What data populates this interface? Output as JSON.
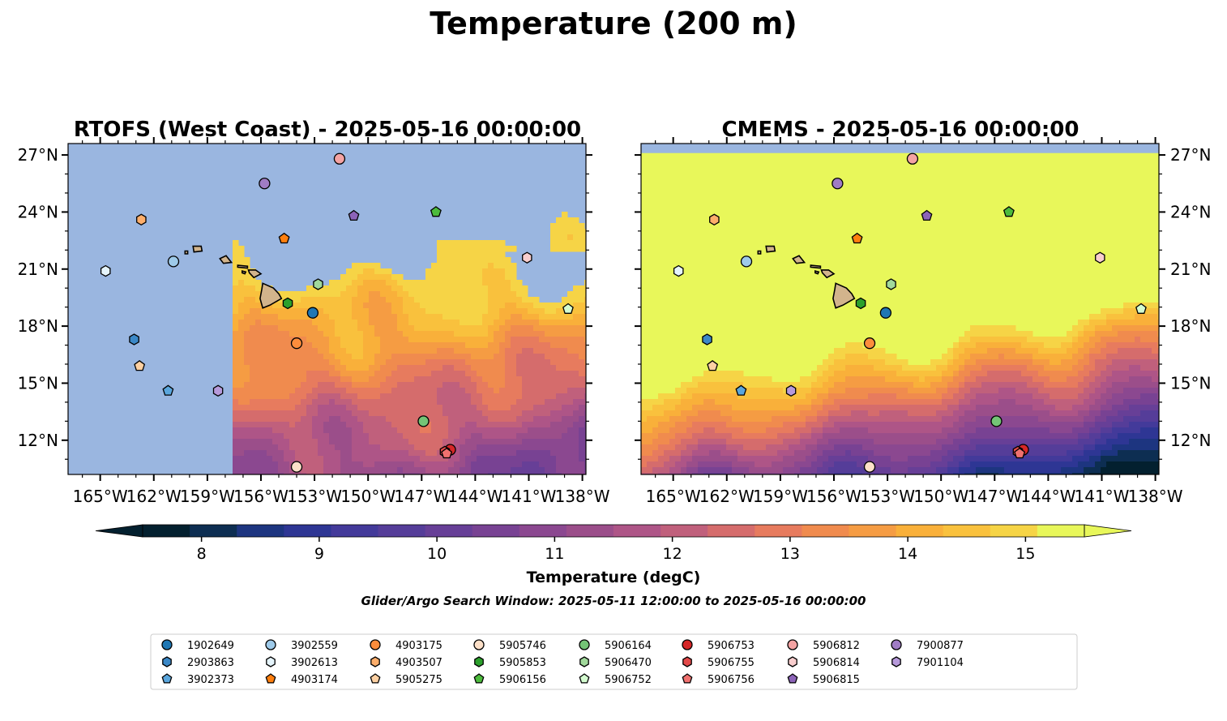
{
  "figure": {
    "title": "Temperature (200 m)",
    "colorbar_label": "Temperature (degC)",
    "search_window": "Glider/Argo Search Window: 2025-05-11 12:00:00 to 2025-05-16 00:00:00"
  },
  "colors": {
    "land": "#d2b48c",
    "nodata": "#9ab6e0",
    "warm": "#e8f75a"
  },
  "chart_data": [
    {
      "type": "heatmap",
      "title": "RTOFS (West Coast) - 2025-05-16 00:00:00",
      "xlim": [
        -166.8,
        -137.8
      ],
      "ylim": [
        10.2,
        27.6
      ],
      "grid": false,
      "x_ticks": [
        -165,
        -162,
        -159,
        -156,
        -153,
        -150,
        -147,
        -144,
        -141,
        -138
      ],
      "y_ticks": [
        12,
        15,
        18,
        21,
        24,
        27
      ],
      "x_tick_labels": [
        "165°W",
        "162°W",
        "159°W",
        "156°W",
        "153°W",
        "150°W",
        "147°W",
        "144°W",
        "141°W",
        "138°W"
      ],
      "y_tick_labels": [
        "12°N",
        "15°N",
        "18°N",
        "21°N",
        "24°N",
        "27°N"
      ],
      "y_axis_side": "left",
      "model_domain_west_edge": -157.7
    },
    {
      "type": "heatmap",
      "title": "CMEMS - 2025-05-16 00:00:00",
      "xlim": [
        -166.8,
        -137.8
      ],
      "ylim": [
        10.2,
        27.6
      ],
      "grid": false,
      "x_ticks": [
        -165,
        -162,
        -159,
        -156,
        -153,
        -150,
        -147,
        -144,
        -141,
        -138
      ],
      "y_ticks": [
        12,
        15,
        18,
        21,
        24,
        27
      ],
      "x_tick_labels": [
        "165°W",
        "162°W",
        "159°W",
        "156°W",
        "153°W",
        "150°W",
        "147°W",
        "144°W",
        "141°W",
        "138°W"
      ],
      "y_tick_labels": [
        "12°N",
        "15°N",
        "18°N",
        "21°N",
        "24°N",
        "27°N"
      ],
      "y_axis_side": "right",
      "model_domain_north_edge": 27.1
    }
  ],
  "colorbar": {
    "min": 7.5,
    "max": 15.5,
    "ticks": [
      8,
      9,
      10,
      11,
      12,
      13,
      14,
      15
    ],
    "tick_labels": [
      "8",
      "9",
      "10",
      "11",
      "12",
      "13",
      "14",
      "15"
    ],
    "level_colors": [
      "#03202f",
      "#0d2e52",
      "#1d3580",
      "#2e3694",
      "#433a9a",
      "#553d99",
      "#673f97",
      "#784293",
      "#8b4890",
      "#9b4e8a",
      "#ae5587",
      "#c0607c",
      "#d56c6c",
      "#e77b5e",
      "#f08b4e",
      "#f59c43",
      "#f9b03a",
      "#f9c13d",
      "#f6d446",
      "#e8f75a"
    ],
    "extend": "both"
  },
  "floats": [
    {
      "id": "1902649",
      "marker": "circle",
      "color": "#1f77b4",
      "lon": -153.1,
      "lat": 18.7
    },
    {
      "id": "2903863",
      "marker": "hexagon",
      "color": "#3b88c7",
      "lon": -163.1,
      "lat": 17.3
    },
    {
      "id": "3902373",
      "marker": "pentagon",
      "color": "#5aa6dd",
      "lon": -161.2,
      "lat": 14.6
    },
    {
      "id": "3902559",
      "marker": "circle",
      "color": "#9ecae9",
      "lon": -160.9,
      "lat": 21.4
    },
    {
      "id": "3902613",
      "marker": "hexagon",
      "color": "#e5f4fb",
      "lon": -164.7,
      "lat": 20.9
    },
    {
      "id": "4903174",
      "marker": "pentagon",
      "color": "#ff7f0e",
      "lon": -154.7,
      "lat": 22.6
    },
    {
      "id": "4903175",
      "marker": "circle",
      "color": "#fd8d3c",
      "lon": -154.0,
      "lat": 17.1
    },
    {
      "id": "4903507",
      "marker": "hexagon",
      "color": "#fdae6b",
      "lon": -162.7,
      "lat": 23.6
    },
    {
      "id": "5905275",
      "marker": "pentagon",
      "color": "#fdd0a2",
      "lon": -162.8,
      "lat": 15.9
    },
    {
      "id": "5905746",
      "marker": "circle",
      "color": "#fde0c8",
      "lon": -154.0,
      "lat": 10.6
    },
    {
      "id": "5905853",
      "marker": "hexagon",
      "color": "#2ca02c",
      "lon": -154.5,
      "lat": 19.2
    },
    {
      "id": "5906156",
      "marker": "pentagon",
      "color": "#4cbb3c",
      "lon": -146.2,
      "lat": 24.0
    },
    {
      "id": "5906164",
      "marker": "circle",
      "color": "#74c476",
      "lon": -146.9,
      "lat": 13.0
    },
    {
      "id": "5906470",
      "marker": "hexagon",
      "color": "#a1d99b",
      "lon": -152.8,
      "lat": 20.2
    },
    {
      "id": "5906752",
      "marker": "pentagon",
      "color": "#d4fcd0",
      "lon": -138.8,
      "lat": 18.9
    },
    {
      "id": "5906753",
      "marker": "circle",
      "color": "#d62728",
      "lon": -145.4,
      "lat": 11.5
    },
    {
      "id": "5906755",
      "marker": "hexagon",
      "color": "#e34a4a",
      "lon": -145.7,
      "lat": 11.4
    },
    {
      "id": "5906756",
      "marker": "pentagon",
      "color": "#f0716f",
      "lon": -145.6,
      "lat": 11.3
    },
    {
      "id": "5906812",
      "marker": "circle",
      "color": "#f4a3a3",
      "lon": -151.6,
      "lat": 26.8
    },
    {
      "id": "5906814",
      "marker": "hexagon",
      "color": "#f9cece",
      "lon": -141.1,
      "lat": 21.6
    },
    {
      "id": "5906815",
      "marker": "pentagon",
      "color": "#8c63b8",
      "lon": -150.8,
      "lat": 23.8
    },
    {
      "id": "7900877",
      "marker": "circle",
      "color": "#a07cc5",
      "lon": -155.8,
      "lat": 25.5
    },
    {
      "id": "7901104",
      "marker": "hexagon",
      "color": "#b79adb",
      "lon": -158.4,
      "lat": 14.6
    }
  ],
  "islands": [
    {
      "name": "Hawaii",
      "points": [
        [
          -155.9,
          20.25
        ],
        [
          -155.3,
          20.0
        ],
        [
          -155.0,
          19.7
        ],
        [
          -154.85,
          19.45
        ],
        [
          -155.5,
          19.1
        ],
        [
          -155.9,
          18.95
        ],
        [
          -156.05,
          19.45
        ],
        [
          -155.95,
          19.95
        ]
      ]
    },
    {
      "name": "Maui",
      "points": [
        [
          -156.7,
          20.95
        ],
        [
          -156.3,
          20.95
        ],
        [
          -156.0,
          20.75
        ],
        [
          -156.4,
          20.55
        ],
        [
          -156.65,
          20.8
        ]
      ]
    },
    {
      "name": "Molokai",
      "points": [
        [
          -157.3,
          21.2
        ],
        [
          -156.75,
          21.15
        ],
        [
          -156.75,
          21.05
        ],
        [
          -157.3,
          21.1
        ]
      ]
    },
    {
      "name": "Lanai",
      "points": [
        [
          -157.05,
          20.9
        ],
        [
          -156.85,
          20.85
        ],
        [
          -156.9,
          20.75
        ],
        [
          -157.05,
          20.8
        ]
      ]
    },
    {
      "name": "Oahu",
      "points": [
        [
          -158.3,
          21.55
        ],
        [
          -157.95,
          21.7
        ],
        [
          -157.65,
          21.35
        ],
        [
          -158.1,
          21.3
        ]
      ]
    },
    {
      "name": "Kauai",
      "points": [
        [
          -159.8,
          22.2
        ],
        [
          -159.35,
          22.2
        ],
        [
          -159.3,
          21.95
        ],
        [
          -159.75,
          21.9
        ]
      ]
    },
    {
      "name": "Niihau",
      "points": [
        [
          -160.25,
          21.95
        ],
        [
          -160.1,
          21.95
        ],
        [
          -160.1,
          21.8
        ],
        [
          -160.25,
          21.8
        ]
      ]
    }
  ]
}
